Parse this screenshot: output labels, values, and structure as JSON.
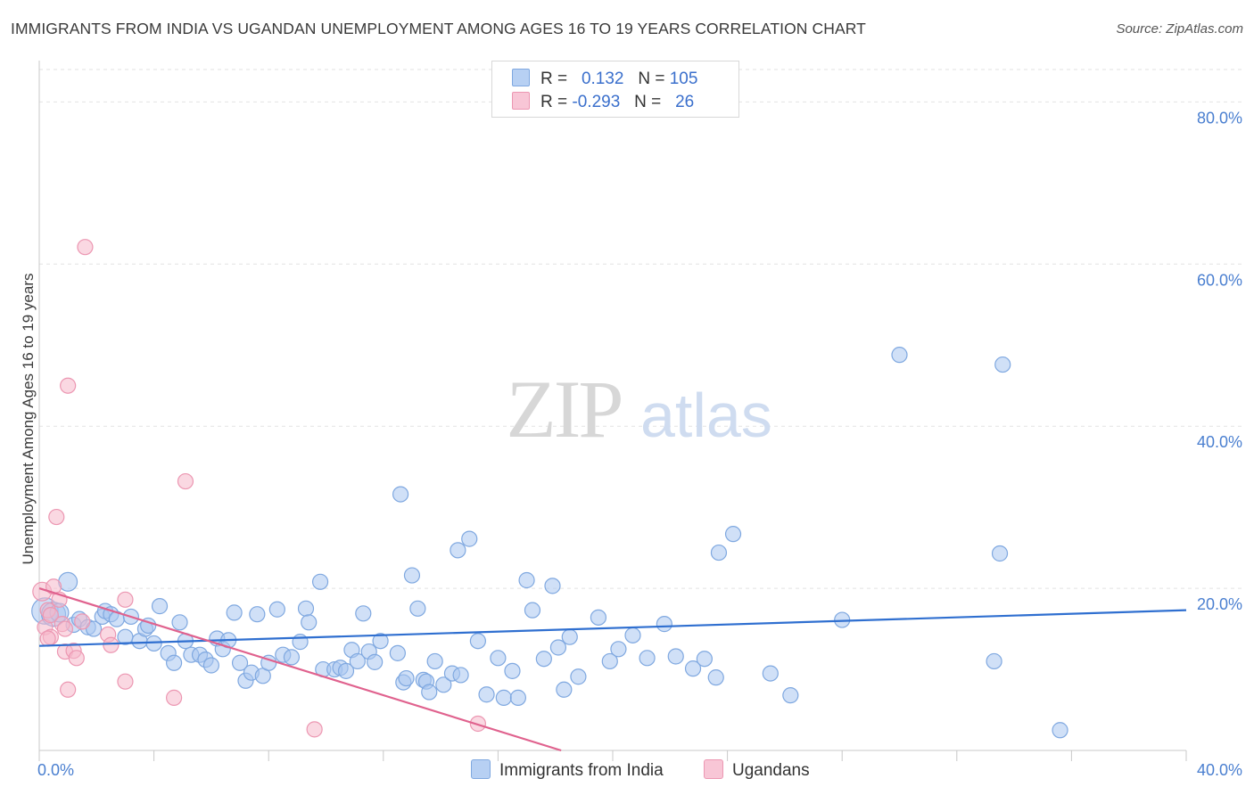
{
  "title": "IMMIGRANTS FROM INDIA VS UGANDAN UNEMPLOYMENT AMONG AGES 16 TO 19 YEARS CORRELATION CHART",
  "source": "Source: ZipAtlas.com",
  "watermark": {
    "zip": "ZIP",
    "atlas": "atlas"
  },
  "legend": {
    "rows": [
      {
        "r_label": "R =",
        "r_value": "0.132",
        "n_label": "N =",
        "n_value": "105"
      },
      {
        "r_label": "R =",
        "r_value": "-0.293",
        "n_label": "N =",
        "n_value": "26"
      }
    ]
  },
  "colors": {
    "india_fill": "#a9c6f0",
    "india_stroke": "#7fa8e0",
    "india_line": "#2f6fd0",
    "uganda_fill": "#f5b8cb",
    "uganda_stroke": "#ec97b2",
    "uganda_line": "#e0628e",
    "tick_text": "#4a7fd0",
    "grid": "#e2e2e2"
  },
  "chart_data": {
    "type": "scatter",
    "title": "IMMIGRANTS FROM INDIA VS UGANDAN UNEMPLOYMENT AMONG AGES 16 TO 19 YEARS CORRELATION CHART",
    "xlabel": "",
    "ylabel": "Unemployment Among Ages 16 to 19 years",
    "xlim": [
      0,
      40
    ],
    "ylim": [
      0,
      84
    ],
    "x_tick_labels": [
      {
        "value": 0,
        "label": "0.0%"
      },
      {
        "value": 40,
        "label": "40.0%"
      }
    ],
    "y_tick_labels": [
      {
        "value": 20,
        "label": "20.0%"
      },
      {
        "value": 40,
        "label": "40.0%"
      },
      {
        "value": 60,
        "label": "60.0%"
      },
      {
        "value": 80,
        "label": "80.0%"
      }
    ],
    "series": [
      {
        "name": "Immigrants from India",
        "trend": {
          "x": [
            0,
            40
          ],
          "y": [
            12.9,
            17.3
          ]
        },
        "points": [
          [
            0.2,
            17.2,
            3
          ],
          [
            0.5,
            16.8,
            2.5
          ],
          [
            0.7,
            17.0,
            1.5
          ],
          [
            1.0,
            20.8,
            1.5
          ],
          [
            1.2,
            15.5,
            1
          ],
          [
            1.4,
            16.2,
            1
          ],
          [
            1.7,
            15.2,
            1
          ],
          [
            1.9,
            15.0,
            1
          ],
          [
            2.2,
            16.5,
            1
          ],
          [
            2.3,
            17.2,
            1
          ],
          [
            2.5,
            16.8,
            1
          ],
          [
            2.7,
            16.2,
            1
          ],
          [
            3.0,
            14.0,
            1
          ],
          [
            3.2,
            16.5,
            1
          ],
          [
            3.5,
            13.5,
            1
          ],
          [
            3.7,
            15.0,
            1
          ],
          [
            3.8,
            15.4,
            1
          ],
          [
            4.0,
            13.2,
            1
          ],
          [
            4.2,
            17.8,
            1
          ],
          [
            4.5,
            12.0,
            1
          ],
          [
            4.7,
            10.8,
            1
          ],
          [
            4.9,
            15.8,
            1
          ],
          [
            5.1,
            13.5,
            1
          ],
          [
            5.3,
            11.8,
            1
          ],
          [
            5.6,
            11.8,
            1
          ],
          [
            5.8,
            11.2,
            1
          ],
          [
            6.0,
            10.5,
            1
          ],
          [
            6.2,
            13.8,
            1
          ],
          [
            6.4,
            12.5,
            1
          ],
          [
            6.6,
            13.6,
            1
          ],
          [
            6.8,
            17.0,
            1
          ],
          [
            7.0,
            10.8,
            1
          ],
          [
            7.2,
            8.6,
            1
          ],
          [
            7.4,
            9.6,
            1
          ],
          [
            7.6,
            16.8,
            1
          ],
          [
            7.8,
            9.2,
            1
          ],
          [
            8.0,
            10.8,
            1
          ],
          [
            8.3,
            17.4,
            1
          ],
          [
            8.5,
            11.8,
            1
          ],
          [
            8.8,
            11.5,
            1
          ],
          [
            9.1,
            13.4,
            1
          ],
          [
            9.3,
            17.5,
            1
          ],
          [
            9.4,
            15.8,
            1
          ],
          [
            9.8,
            20.8,
            1
          ],
          [
            9.9,
            10.0,
            1
          ],
          [
            10.3,
            10.0,
            1
          ],
          [
            10.5,
            10.2,
            1
          ],
          [
            10.7,
            9.8,
            1
          ],
          [
            10.9,
            12.4,
            1
          ],
          [
            11.1,
            11.0,
            1
          ],
          [
            11.3,
            16.9,
            1
          ],
          [
            11.5,
            12.2,
            1
          ],
          [
            11.7,
            10.9,
            1
          ],
          [
            11.9,
            13.5,
            1
          ],
          [
            12.5,
            12.0,
            1
          ],
          [
            12.6,
            31.6,
            1
          ],
          [
            12.7,
            8.4,
            1
          ],
          [
            12.8,
            8.9,
            1
          ],
          [
            13.0,
            21.6,
            1
          ],
          [
            13.2,
            17.5,
            1
          ],
          [
            13.4,
            8.7,
            1
          ],
          [
            13.5,
            8.5,
            1
          ],
          [
            13.6,
            7.2,
            1
          ],
          [
            13.8,
            11.0,
            1
          ],
          [
            14.1,
            8.1,
            1
          ],
          [
            14.4,
            9.5,
            1
          ],
          [
            14.6,
            24.7,
            1
          ],
          [
            14.7,
            9.3,
            1
          ],
          [
            15.0,
            26.1,
            1
          ],
          [
            15.3,
            13.5,
            1
          ],
          [
            15.6,
            6.9,
            1
          ],
          [
            16.0,
            11.4,
            1
          ],
          [
            16.2,
            6.5,
            1
          ],
          [
            16.5,
            9.8,
            1
          ],
          [
            16.7,
            6.5,
            1
          ],
          [
            17.0,
            21.0,
            1
          ],
          [
            17.2,
            17.3,
            1
          ],
          [
            17.6,
            11.3,
            1
          ],
          [
            17.9,
            20.3,
            1
          ],
          [
            18.1,
            12.7,
            1
          ],
          [
            18.3,
            7.5,
            1
          ],
          [
            18.5,
            14.0,
            1
          ],
          [
            18.8,
            9.1,
            1
          ],
          [
            19.5,
            16.4,
            1
          ],
          [
            19.9,
            11.0,
            1
          ],
          [
            20.2,
            12.5,
            1
          ],
          [
            20.7,
            14.2,
            1
          ],
          [
            21.2,
            11.4,
            1
          ],
          [
            21.8,
            15.6,
            1
          ],
          [
            22.2,
            11.6,
            1
          ],
          [
            22.8,
            10.1,
            1
          ],
          [
            23.2,
            11.3,
            1
          ],
          [
            23.6,
            9.0,
            1
          ],
          [
            23.7,
            24.4,
            1
          ],
          [
            24.2,
            26.7,
            1
          ],
          [
            25.5,
            9.5,
            1
          ],
          [
            26.2,
            6.8,
            1
          ],
          [
            28.0,
            16.1,
            1
          ],
          [
            30.0,
            48.8,
            1
          ],
          [
            33.3,
            11.0,
            1
          ],
          [
            33.5,
            24.3,
            1
          ],
          [
            33.6,
            47.6,
            1
          ],
          [
            35.6,
            2.5,
            1
          ]
        ]
      },
      {
        "name": "Ugandans",
        "trend": {
          "x": [
            0,
            18.2
          ],
          "y": [
            20.0,
            0.0
          ]
        },
        "points": [
          [
            0.1,
            19.6,
            1.5
          ],
          [
            0.2,
            15.2,
            1
          ],
          [
            0.3,
            17.3,
            1
          ],
          [
            0.4,
            14.0,
            1
          ],
          [
            0.4,
            16.7,
            1
          ],
          [
            0.5,
            20.2,
            1
          ],
          [
            0.6,
            28.8,
            1
          ],
          [
            0.7,
            18.6,
            1
          ],
          [
            0.8,
            15.6,
            1
          ],
          [
            0.9,
            12.2,
            1
          ],
          [
            1.0,
            45.0,
            1
          ],
          [
            1.0,
            7.5,
            1
          ],
          [
            1.2,
            12.3,
            1
          ],
          [
            1.3,
            11.4,
            1
          ],
          [
            1.5,
            15.9,
            1
          ],
          [
            1.6,
            62.1,
            1
          ],
          [
            2.4,
            14.3,
            1
          ],
          [
            2.5,
            13.0,
            1
          ],
          [
            3.0,
            18.6,
            1
          ],
          [
            3.0,
            8.5,
            1
          ],
          [
            4.7,
            6.5,
            1
          ],
          [
            5.1,
            33.2,
            1
          ],
          [
            9.6,
            2.6,
            1
          ],
          [
            15.3,
            3.3,
            1
          ],
          [
            0.3,
            13.8,
            1
          ],
          [
            0.9,
            15.0,
            1
          ]
        ]
      }
    ]
  },
  "bottom_legend": [
    {
      "label": "Immigrants from India"
    },
    {
      "label": "Ugandans"
    }
  ]
}
